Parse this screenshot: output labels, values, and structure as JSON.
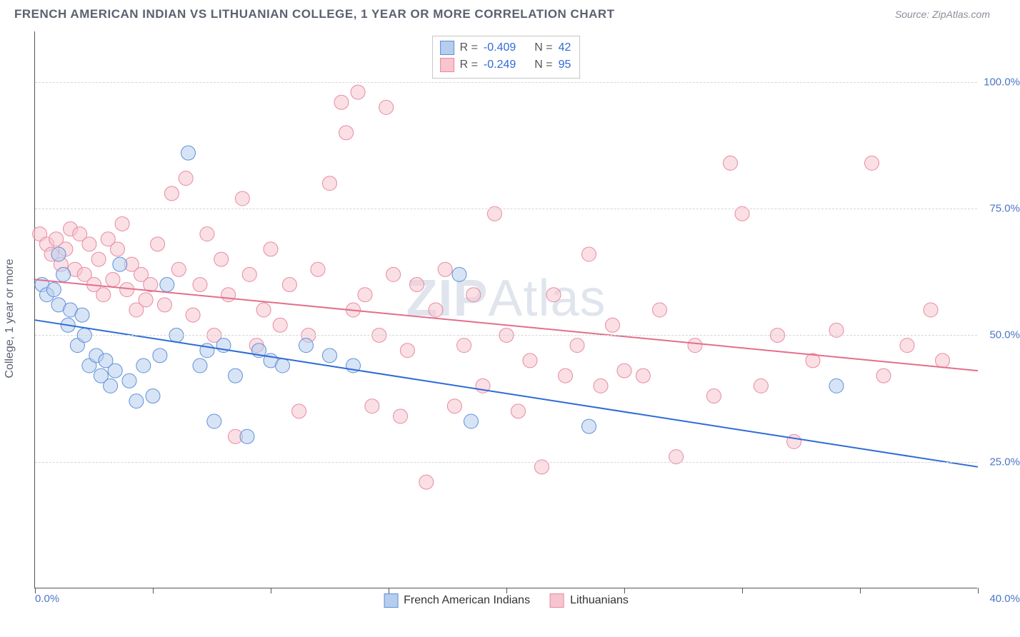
{
  "title": "FRENCH AMERICAN INDIAN VS LITHUANIAN COLLEGE, 1 YEAR OR MORE CORRELATION CHART",
  "source": "Source: ZipAtlas.com",
  "ylabel": "College, 1 year or more",
  "watermark_a": "ZIP",
  "watermark_b": "Atlas",
  "chart": {
    "type": "scatter",
    "xlim": [
      0,
      40
    ],
    "ylim": [
      0,
      110
    ],
    "xtick_positions": [
      0,
      5,
      10,
      15,
      20,
      25,
      30,
      35,
      40
    ],
    "xtick_labels_shown": {
      "min": "0.0%",
      "max": "40.0%"
    },
    "ytick_positions": [
      25,
      50,
      75,
      100
    ],
    "ytick_labels": [
      "25.0%",
      "50.0%",
      "75.0%",
      "100.0%"
    ],
    "background_color": "#ffffff",
    "grid_color": "#d6d6d6",
    "marker_radius": 10,
    "marker_opacity": 0.55,
    "series": [
      {
        "name": "French American Indians",
        "color_fill": "#b6cdee",
        "color_stroke": "#5f8fd8",
        "R": "-0.409",
        "N": "42",
        "trend": {
          "y_at_x0": 53,
          "y_at_x40": 24,
          "stroke": "#2e6bd6",
          "width": 2
        },
        "points": [
          [
            0.3,
            60
          ],
          [
            0.5,
            58
          ],
          [
            0.8,
            59
          ],
          [
            1.0,
            56
          ],
          [
            1.2,
            62
          ],
          [
            1.4,
            52
          ],
          [
            1.5,
            55
          ],
          [
            1.8,
            48
          ],
          [
            2.0,
            54
          ],
          [
            2.1,
            50
          ],
          [
            2.3,
            44
          ],
          [
            2.6,
            46
          ],
          [
            2.8,
            42
          ],
          [
            3.0,
            45
          ],
          [
            3.2,
            40
          ],
          [
            3.4,
            43
          ],
          [
            3.6,
            64
          ],
          [
            4.0,
            41
          ],
          [
            4.3,
            37
          ],
          [
            4.6,
            44
          ],
          [
            5.0,
            38
          ],
          [
            5.3,
            46
          ],
          [
            5.6,
            60
          ],
          [
            6.0,
            50
          ],
          [
            6.5,
            86
          ],
          [
            7.0,
            44
          ],
          [
            7.3,
            47
          ],
          [
            7.6,
            33
          ],
          [
            8.0,
            48
          ],
          [
            8.5,
            42
          ],
          [
            9.0,
            30
          ],
          [
            9.5,
            47
          ],
          [
            10.0,
            45
          ],
          [
            10.5,
            44
          ],
          [
            11.5,
            48
          ],
          [
            12.5,
            46
          ],
          [
            13.5,
            44
          ],
          [
            18.0,
            62
          ],
          [
            18.5,
            33
          ],
          [
            23.5,
            32
          ],
          [
            34.0,
            40
          ],
          [
            1.0,
            66
          ]
        ]
      },
      {
        "name": "Lithuanians",
        "color_fill": "#f6c5cf",
        "color_stroke": "#e88aa0",
        "R": "-0.249",
        "N": "95",
        "trend": {
          "y_at_x0": 61,
          "y_at_x40": 43,
          "stroke": "#e36f8b",
          "width": 2
        },
        "points": [
          [
            0.2,
            70
          ],
          [
            0.5,
            68
          ],
          [
            0.7,
            66
          ],
          [
            0.9,
            69
          ],
          [
            1.1,
            64
          ],
          [
            1.3,
            67
          ],
          [
            1.5,
            71
          ],
          [
            1.7,
            63
          ],
          [
            1.9,
            70
          ],
          [
            2.1,
            62
          ],
          [
            2.3,
            68
          ],
          [
            2.5,
            60
          ],
          [
            2.7,
            65
          ],
          [
            2.9,
            58
          ],
          [
            3.1,
            69
          ],
          [
            3.3,
            61
          ],
          [
            3.5,
            67
          ],
          [
            3.7,
            72
          ],
          [
            3.9,
            59
          ],
          [
            4.1,
            64
          ],
          [
            4.3,
            55
          ],
          [
            4.5,
            62
          ],
          [
            4.7,
            57
          ],
          [
            4.9,
            60
          ],
          [
            5.2,
            68
          ],
          [
            5.5,
            56
          ],
          [
            5.8,
            78
          ],
          [
            6.1,
            63
          ],
          [
            6.4,
            81
          ],
          [
            6.7,
            54
          ],
          [
            7.0,
            60
          ],
          [
            7.3,
            70
          ],
          [
            7.6,
            50
          ],
          [
            7.9,
            65
          ],
          [
            8.2,
            58
          ],
          [
            8.5,
            30
          ],
          [
            8.8,
            77
          ],
          [
            9.1,
            62
          ],
          [
            9.4,
            48
          ],
          [
            9.7,
            55
          ],
          [
            10.0,
            67
          ],
          [
            10.4,
            52
          ],
          [
            10.8,
            60
          ],
          [
            11.2,
            35
          ],
          [
            11.6,
            50
          ],
          [
            12.0,
            63
          ],
          [
            12.5,
            80
          ],
          [
            13.0,
            96
          ],
          [
            13.2,
            90
          ],
          [
            13.5,
            55
          ],
          [
            13.7,
            98
          ],
          [
            14.0,
            58
          ],
          [
            14.3,
            36
          ],
          [
            14.6,
            50
          ],
          [
            14.9,
            95
          ],
          [
            15.2,
            62
          ],
          [
            15.5,
            34
          ],
          [
            15.8,
            47
          ],
          [
            16.2,
            60
          ],
          [
            16.6,
            21
          ],
          [
            17.0,
            55
          ],
          [
            17.4,
            63
          ],
          [
            17.8,
            36
          ],
          [
            18.2,
            48
          ],
          [
            18.6,
            58
          ],
          [
            19.0,
            40
          ],
          [
            19.5,
            74
          ],
          [
            20.0,
            50
          ],
          [
            20.5,
            35
          ],
          [
            21.0,
            45
          ],
          [
            21.5,
            24
          ],
          [
            22.0,
            58
          ],
          [
            22.5,
            42
          ],
          [
            23.0,
            48
          ],
          [
            23.5,
            66
          ],
          [
            24.0,
            40
          ],
          [
            24.5,
            52
          ],
          [
            25.0,
            43
          ],
          [
            25.8,
            42
          ],
          [
            26.5,
            55
          ],
          [
            27.2,
            26
          ],
          [
            28.0,
            48
          ],
          [
            28.8,
            38
          ],
          [
            29.5,
            84
          ],
          [
            30.0,
            74
          ],
          [
            30.8,
            40
          ],
          [
            31.5,
            50
          ],
          [
            32.2,
            29
          ],
          [
            33.0,
            45
          ],
          [
            34.0,
            51
          ],
          [
            35.5,
            84
          ],
          [
            36.0,
            42
          ],
          [
            37.0,
            48
          ],
          [
            38.0,
            55
          ],
          [
            38.5,
            45
          ]
        ]
      }
    ]
  },
  "legend_stats": [
    {
      "swatch_fill": "#b6cdee",
      "swatch_stroke": "#5f8fd8",
      "R": "-0.409",
      "N": "42"
    },
    {
      "swatch_fill": "#f6c5cf",
      "swatch_stroke": "#e88aa0",
      "R": "-0.249",
      "N": "95"
    }
  ],
  "bottom_legend": [
    {
      "swatch_fill": "#b6cdee",
      "swatch_stroke": "#5f8fd8",
      "label": "French American Indians"
    },
    {
      "swatch_fill": "#f6c5cf",
      "swatch_stroke": "#e88aa0",
      "label": "Lithuanians"
    }
  ]
}
